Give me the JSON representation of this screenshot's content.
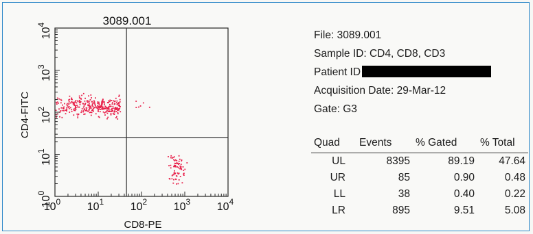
{
  "chart_data": {
    "type": "scatter",
    "title": "3089.001",
    "xlabel": "CD8-PE",
    "ylabel": "CD4-FITC",
    "xscale": "log",
    "yscale": "log",
    "xlim": [
      1,
      10000
    ],
    "ylim": [
      1,
      10000
    ],
    "x_ticks": [
      {
        "value": 1,
        "mant": "10",
        "exp": "0"
      },
      {
        "value": 10,
        "mant": "10",
        "exp": "1"
      },
      {
        "value": 100,
        "mant": "10",
        "exp": "2"
      },
      {
        "value": 1000,
        "mant": "10",
        "exp": "3"
      },
      {
        "value": 10000,
        "mant": "10",
        "exp": "4"
      }
    ],
    "y_ticks": [
      {
        "value": 1,
        "mant": "10",
        "exp": "0"
      },
      {
        "value": 10,
        "mant": "10",
        "exp": "1"
      },
      {
        "value": 100,
        "mant": "10",
        "exp": "2"
      },
      {
        "value": 1000,
        "mant": "10",
        "exp": "3"
      },
      {
        "value": 10000,
        "mant": "10",
        "exp": "4"
      }
    ],
    "quadrant_gate": {
      "x": 45,
      "y": 25
    },
    "point_color": "#e8204a",
    "clusters": [
      {
        "region": "UL",
        "x_log_range": [
          0.0,
          1.5
        ],
        "y_log_range": [
          1.75,
          2.55
        ],
        "count": 330
      },
      {
        "region": "UR",
        "x_log_range": [
          1.6,
          2.4
        ],
        "y_log_range": [
          2.0,
          2.35
        ],
        "count": 6
      },
      {
        "region": "LR",
        "x_log_range": [
          2.45,
          3.15
        ],
        "y_log_range": [
          0.1,
          1.25
        ],
        "count": 75
      }
    ]
  },
  "info": {
    "file": "File: 3089.001",
    "sample_id": "Sample ID: CD4, CD8, CD3",
    "patient_id": "Patient ID",
    "acquisition_date": "Acquisition Date: 29-Mar-12",
    "gate": "Gate: G3"
  },
  "stats_table": {
    "headers": [
      "Quad",
      "Events",
      "% Gated",
      "% Total"
    ],
    "rows": [
      [
        "UL",
        "8395",
        "89.19",
        "47.64"
      ],
      [
        "UR",
        "85",
        "0.90",
        "0.48"
      ],
      [
        "LL",
        "38",
        "0.40",
        "0.22"
      ],
      [
        "LR",
        "895",
        "9.51",
        "5.08"
      ]
    ]
  }
}
